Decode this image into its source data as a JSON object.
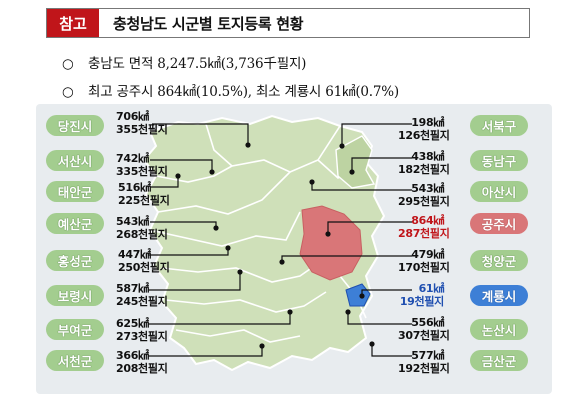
{
  "header": {
    "ref_tag": "참고",
    "title": "충청남도 시군별 토지등록 현황"
  },
  "bullets": [
    {
      "mark": "○",
      "text": "충남도 면적 8,247.5㎢(3,736千필지)"
    },
    {
      "mark": "○",
      "text": "최고 공주시 864㎢(10.5%), 최소 계룡시 61㎢(0.7%)"
    }
  ],
  "regions_left": [
    {
      "name": "당진시",
      "area": "706㎢",
      "parcels": "355천필지"
    },
    {
      "name": "서산시",
      "area": "742㎢",
      "parcels": "335천필지"
    },
    {
      "name": "태안군",
      "area": "516㎢",
      "parcels": "225천필지"
    },
    {
      "name": "예산군",
      "area": "543㎢",
      "parcels": "268천필지"
    },
    {
      "name": "홍성군",
      "area": "447㎢",
      "parcels": "250천필지"
    },
    {
      "name": "보령시",
      "area": "587㎢",
      "parcels": "245천필지"
    },
    {
      "name": "부여군",
      "area": "625㎢",
      "parcels": "273천필지"
    },
    {
      "name": "서천군",
      "area": "366㎢",
      "parcels": "208천필지"
    }
  ],
  "regions_right": [
    {
      "name": "서북구",
      "area": "198㎢",
      "parcels": "126천필지"
    },
    {
      "name": "동남구",
      "area": "438㎢",
      "parcels": "182천필지"
    },
    {
      "name": "아산시",
      "area": "543㎢",
      "parcels": "295천필지"
    },
    {
      "name": "공주시",
      "area": "864㎢",
      "parcels": "287천필지",
      "highlight": "max"
    },
    {
      "name": "청양군",
      "area": "479㎢",
      "parcels": "170천필지"
    },
    {
      "name": "계룡시",
      "area": "61㎢",
      "parcels": "19천필지",
      "highlight": "min"
    },
    {
      "name": "논산시",
      "area": "556㎢",
      "parcels": "307천필지"
    },
    {
      "name": "금산군",
      "area": "577㎢",
      "parcels": "192천필지"
    }
  ],
  "colors": {
    "ref_tag": "#c0151a",
    "pill_green": "#a3cd8f",
    "map_land": "#cfe0b9",
    "highlight_max": "#d97678",
    "highlight_min": "#3d7fd6"
  }
}
